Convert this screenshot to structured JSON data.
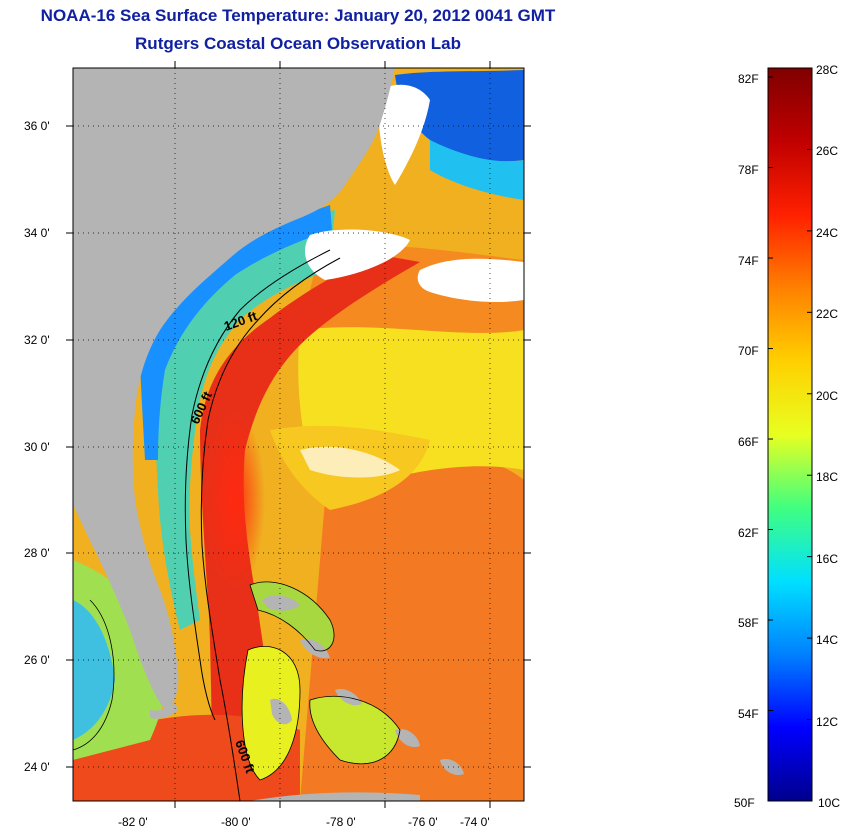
{
  "title": {
    "line1": "NOAA-16 Sea Surface Temperature:  January 20, 2012 0041 GMT",
    "line2": "Rutgers Coastal Ocean Observation Lab"
  },
  "map": {
    "lon_labels": [
      "-82 0'",
      "-80 0'",
      "-78 0'",
      "-76 0'",
      "-74 0'"
    ],
    "lat_labels": [
      "36 0'",
      "34 0'",
      "32 0'",
      "30 0'",
      "28 0'",
      "26 0'",
      "24 0'"
    ],
    "contour_labels": [
      "120 ft",
      "600 ft",
      "600 ft"
    ],
    "colors": {
      "land": "#b4b4b4",
      "cloud": "#ffffff",
      "gulf_stream": "#e83018",
      "warm": "#f07820",
      "mild": "#f8d820",
      "shelf": "#30c8e8"
    }
  },
  "colorbar": {
    "fahrenheit_labels": [
      "82F",
      "78F",
      "74F",
      "70F",
      "66F",
      "62F",
      "58F",
      "54F",
      "50F"
    ],
    "celsius_labels": [
      "28C",
      "26C",
      "24C",
      "22C",
      "20C",
      "18C",
      "16C",
      "14C",
      "12C",
      "10C"
    ],
    "range_c": [
      10,
      28
    ],
    "range_f": [
      50,
      82.4
    ],
    "stops": [
      "#00008c",
      "#0000ff",
      "#0080ff",
      "#00e0ff",
      "#40ff80",
      "#e8ff20",
      "#ffd000",
      "#ff8000",
      "#ff2000",
      "#c00000",
      "#800000"
    ]
  }
}
